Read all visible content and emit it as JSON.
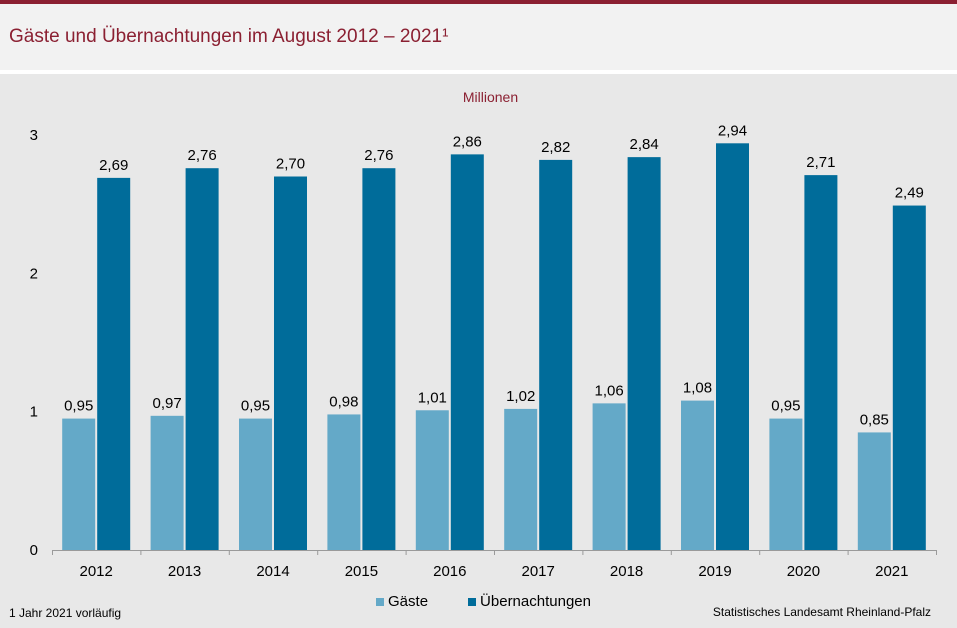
{
  "title": "Gäste und Übernachtungen im August 2012 – 2021¹",
  "footnote": "1 Jahr 2021 vorläufig",
  "source": "Statistisches Landesamt Rheinland-Pfalz",
  "colors": {
    "brand": "#8b2032",
    "gaeste": "#64a9c8",
    "uebernachtungen": "#006c9a"
  },
  "chart_data": {
    "type": "bar",
    "unit_label": "Millionen",
    "categories": [
      "2012",
      "2013",
      "2014",
      "2015",
      "2016",
      "2017",
      "2018",
      "2019",
      "2020",
      "2021"
    ],
    "series": [
      {
        "name": "Gäste",
        "values": [
          0.95,
          0.97,
          0.95,
          0.98,
          1.01,
          1.02,
          1.06,
          1.08,
          0.95,
          0.85
        ],
        "labels": [
          "0,95",
          "0,97",
          "0,95",
          "0,98",
          "1,01",
          "1,02",
          "1,06",
          "1,08",
          "0,95",
          "0,85"
        ]
      },
      {
        "name": "Übernachtungen",
        "values": [
          2.69,
          2.76,
          2.7,
          2.76,
          2.86,
          2.82,
          2.84,
          2.94,
          2.71,
          2.49
        ],
        "labels": [
          "2,69",
          "2,76",
          "2,70",
          "2,76",
          "2,86",
          "2,82",
          "2,84",
          "2,94",
          "2,71",
          "2,49"
        ]
      }
    ],
    "yticks": [
      "0",
      "1",
      "2",
      "3"
    ],
    "ylim": [
      0,
      3
    ],
    "legend_position": "bottom"
  }
}
